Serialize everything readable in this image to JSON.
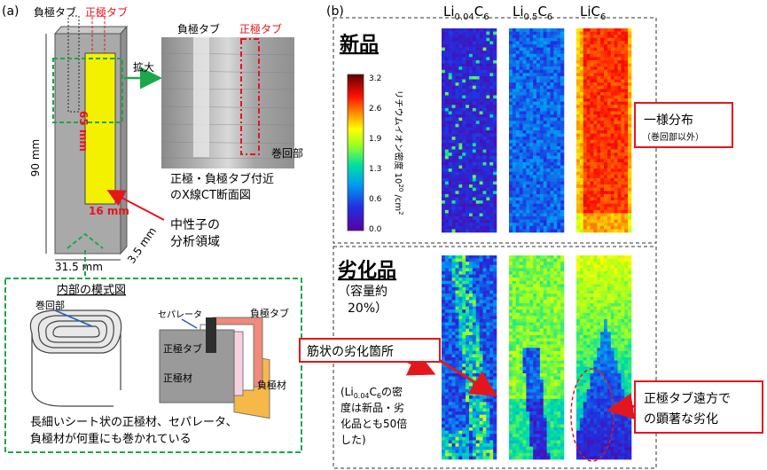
{
  "panel_a": {
    "label": "(a)",
    "neg_tab": "負極タブ",
    "pos_tab": "正極タブ",
    "enlarge": "拡大",
    "dim_90": "90 mm",
    "dim_65": "65 mm",
    "dim_16": "16 mm",
    "dim_31_5": "31.5 mm",
    "dim_3_5": "3.5 mm",
    "ct_neg_tab": "負極タブ",
    "ct_pos_tab": "正極タブ",
    "ct_winding": "巻回部",
    "ct_caption_1": "正極・負極タブ付近",
    "ct_caption_2": "のX線CT断面図",
    "neutron_1": "中性子の",
    "neutron_2": "分析領域",
    "inner_title": "内部の模式図",
    "winding": "巻回部",
    "separator": "セパレータ",
    "neg_tab_small": "負極タブ",
    "pos_tab_small": "正極タブ",
    "pos_material": "正極材",
    "neg_material": "負極材",
    "desc_1": "長細いシート状の正極材、セパレータ、",
    "desc_2": "負極材が何重にも巻かれている"
  },
  "panel_b": {
    "label": "(b)",
    "col1_main": "Li",
    "col1_sub": "0.04",
    "col1_c": "C",
    "col1_c_sub": "6",
    "col2_main": "Li",
    "col2_sub": "0.5",
    "col2_c": "C",
    "col2_c_sub": "6",
    "col3_main": "LiC",
    "col3_sub": "6",
    "new_label": "新品",
    "degraded_label": "劣化品",
    "capacity_1": "（容量約",
    "capacity_2": "20%）",
    "colorbar_ticks": [
      "3.2",
      "2.6",
      "1.9",
      "1.3",
      "0.6",
      "0.0"
    ],
    "colorbar_title": "リチウムイオン密度 10",
    "colorbar_exp": "20",
    "colorbar_unit": " /cm",
    "colorbar_unit_exp": "2",
    "uniform_1": "一様分布",
    "uniform_2": "（巻回部以外）",
    "streak": "筋状の劣化箇所",
    "note_1": "(Li",
    "note_1_sub": "0.04",
    "note_1_c": "C",
    "note_1_c_sub": "6",
    "note_1_tail": "の密",
    "note_2": "度は新品・劣",
    "note_3": "化品とも50倍",
    "note_4": "した)",
    "far_tab_1": "正極タブ遠方で",
    "far_tab_2": "の顕著な劣化"
  },
  "colors": {
    "red": "#e4161d",
    "green": "#1aa84a",
    "cell_gray": "#a9a9a9",
    "yellow": "#f4f100",
    "dash_green": "#22a84a"
  }
}
